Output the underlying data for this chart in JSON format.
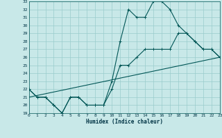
{
  "xlabel": "Humidex (Indice chaleur)",
  "bg_color": "#c8e8e8",
  "grid_color": "#99cccc",
  "line_color": "#005555",
  "xmin": 0,
  "xmax": 23,
  "ymin": 19,
  "ymax": 33,
  "line1_x": [
    0,
    1,
    2,
    3,
    4,
    5,
    6,
    7,
    8,
    9,
    10,
    11,
    12,
    13,
    14,
    15,
    16,
    17,
    18,
    19,
    20,
    21,
    22,
    23
  ],
  "line1_y": [
    22,
    21,
    21,
    20,
    19,
    21,
    21,
    20,
    20,
    20,
    23,
    28,
    32,
    31,
    31,
    33,
    33,
    32,
    30,
    29,
    28,
    27,
    27,
    26
  ],
  "line2_x": [
    0,
    1,
    2,
    3,
    4,
    5,
    6,
    7,
    8,
    9,
    10,
    11,
    12,
    13,
    14,
    15,
    16,
    17,
    18,
    19,
    20,
    21,
    22,
    23
  ],
  "line2_y": [
    22,
    21,
    21,
    20,
    19,
    21,
    21,
    20,
    20,
    20,
    22,
    25,
    25,
    26,
    27,
    27,
    27,
    27,
    29,
    29,
    28,
    27,
    27,
    26
  ],
  "line3_x": [
    0,
    23
  ],
  "line3_y": [
    21,
    26
  ],
  "yticks": [
    19,
    20,
    21,
    22,
    23,
    24,
    25,
    26,
    27,
    28,
    29,
    30,
    31,
    32,
    33
  ],
  "xticks": [
    0,
    1,
    2,
    3,
    4,
    5,
    6,
    7,
    8,
    9,
    10,
    11,
    12,
    13,
    14,
    15,
    16,
    17,
    18,
    19,
    20,
    21,
    22,
    23
  ],
  "xlabel_color": "#003344",
  "tick_color": "#003344",
  "xlabel_fontsize": 5.5,
  "tick_fontsize": 4.5
}
